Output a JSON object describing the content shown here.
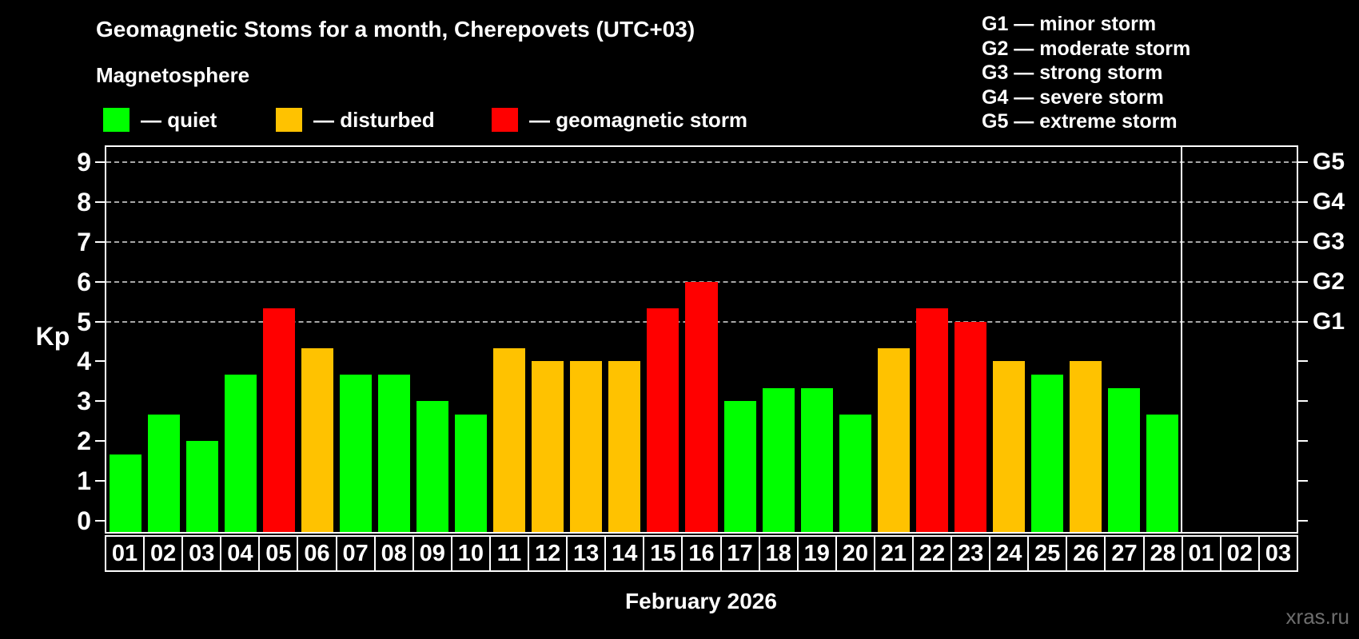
{
  "title": "Geomagnetic Stoms for a month, Cherepovets (UTC+03)",
  "subtitle": "Magnetosphere",
  "legend": {
    "items": [
      {
        "label": "— quiet",
        "level": "quiet",
        "color": "#00ff00"
      },
      {
        "label": "— disturbed",
        "level": "disturbed",
        "color": "#ffc200"
      },
      {
        "label": "— geomagnetic storm",
        "level": "storm",
        "color": "#ff0000"
      }
    ]
  },
  "storm_scale_legend": [
    "G1 — minor storm",
    "G2 — moderate storm",
    "G3 — strong storm",
    "G4 — severe storm",
    "G5 — extreme storm"
  ],
  "watermark": "xras.ru",
  "chart_data": {
    "type": "bar",
    "title": "Geomagnetic Stoms for a month, Cherepovets (UTC+03)",
    "xlabel": "February 2026",
    "ylabel": "Kp",
    "ylim": [
      0,
      9.5
    ],
    "yticks": [
      0,
      1,
      2,
      3,
      4,
      5,
      6,
      7,
      8,
      9
    ],
    "gridlines_at": [
      5,
      6,
      7,
      8,
      9
    ],
    "grid": "dashed horizontal at storm levels only",
    "legend_position": "top",
    "february_day_count": 28,
    "colors": {
      "quiet": "#00ff00",
      "disturbed": "#ffc200",
      "storm": "#ff0000"
    },
    "right_axis_labels": [
      {
        "kp": 9,
        "label": "G5"
      },
      {
        "kp": 8,
        "label": "G4"
      },
      {
        "kp": 7,
        "label": "G3"
      },
      {
        "kp": 6,
        "label": "G2"
      },
      {
        "kp": 5,
        "label": "G1"
      }
    ],
    "days": [
      {
        "label": "01",
        "kp": 1.67,
        "level": "quiet"
      },
      {
        "label": "02",
        "kp": 2.67,
        "level": "quiet"
      },
      {
        "label": "03",
        "kp": 2.0,
        "level": "quiet"
      },
      {
        "label": "04",
        "kp": 3.67,
        "level": "quiet"
      },
      {
        "label": "05",
        "kp": 5.33,
        "level": "storm"
      },
      {
        "label": "06",
        "kp": 4.33,
        "level": "disturbed"
      },
      {
        "label": "07",
        "kp": 3.67,
        "level": "quiet"
      },
      {
        "label": "08",
        "kp": 3.67,
        "level": "quiet"
      },
      {
        "label": "09",
        "kp": 3.0,
        "level": "quiet"
      },
      {
        "label": "10",
        "kp": 2.67,
        "level": "quiet"
      },
      {
        "label": "11",
        "kp": 4.33,
        "level": "disturbed"
      },
      {
        "label": "12",
        "kp": 4.0,
        "level": "disturbed"
      },
      {
        "label": "13",
        "kp": 4.0,
        "level": "disturbed"
      },
      {
        "label": "14",
        "kp": 4.0,
        "level": "disturbed"
      },
      {
        "label": "15",
        "kp": 5.33,
        "level": "storm"
      },
      {
        "label": "16",
        "kp": 6.0,
        "level": "storm"
      },
      {
        "label": "17",
        "kp": 3.0,
        "level": "quiet"
      },
      {
        "label": "18",
        "kp": 3.33,
        "level": "quiet"
      },
      {
        "label": "19",
        "kp": 3.33,
        "level": "quiet"
      },
      {
        "label": "20",
        "kp": 2.67,
        "level": "quiet"
      },
      {
        "label": "21",
        "kp": 4.33,
        "level": "disturbed"
      },
      {
        "label": "22",
        "kp": 5.33,
        "level": "storm"
      },
      {
        "label": "23",
        "kp": 5.0,
        "level": "storm"
      },
      {
        "label": "24",
        "kp": 4.0,
        "level": "disturbed"
      },
      {
        "label": "25",
        "kp": 3.67,
        "level": "quiet"
      },
      {
        "label": "26",
        "kp": 4.0,
        "level": "disturbed"
      },
      {
        "label": "27",
        "kp": 3.33,
        "level": "quiet"
      },
      {
        "label": "28",
        "kp": 2.67,
        "level": "quiet"
      },
      {
        "label": "01",
        "kp": null,
        "level": null
      },
      {
        "label": "02",
        "kp": null,
        "level": null
      },
      {
        "label": "03",
        "kp": null,
        "level": null
      }
    ]
  }
}
